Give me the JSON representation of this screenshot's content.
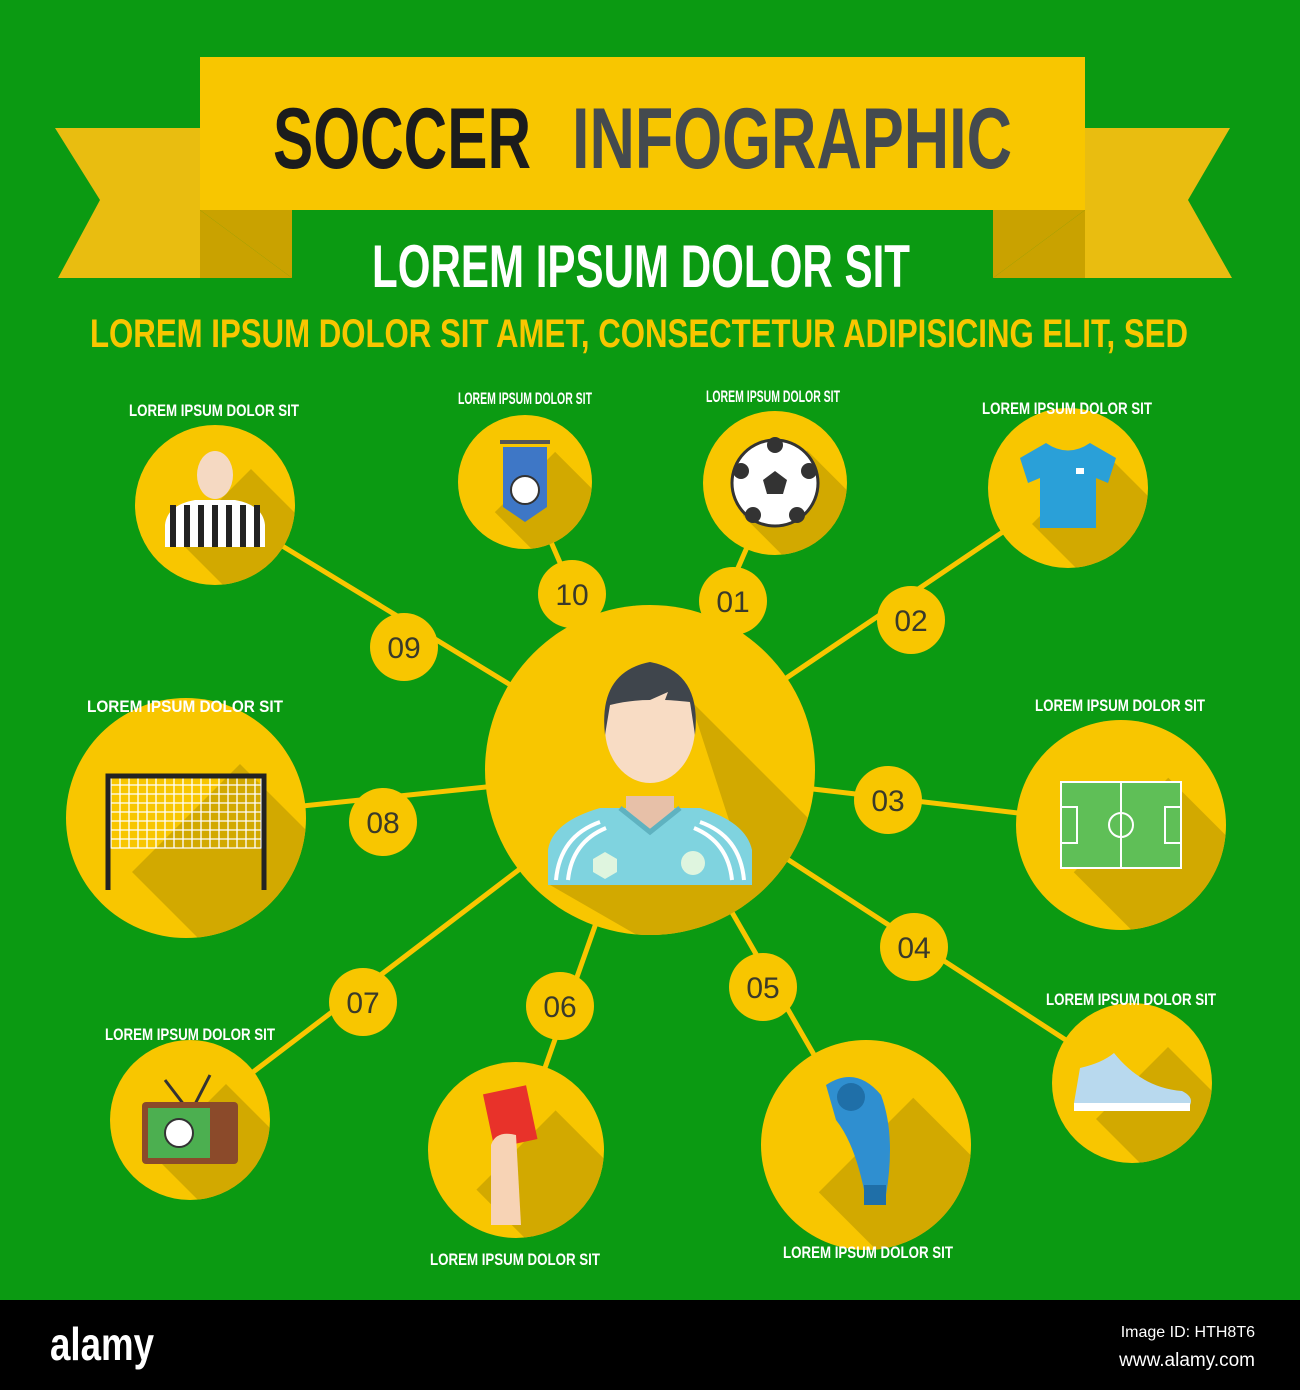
{
  "colors": {
    "background": "#0b9a12",
    "yellow": "#f8c600",
    "shadow": "#d2a900",
    "ribbon_tail": "#e9bd10",
    "ribbon_fold": "#c9a200",
    "title_dark": "#1c1c1c",
    "title_grey": "#444a4f",
    "footer": "#000000"
  },
  "header": {
    "title_word1": "SOCCER",
    "title_word2": "INFOGRAPHIC",
    "subtitle": "LOREM IPSUM DOLOR SIT",
    "tagline": "LOREM IPSUM DOLOR SIT AMET, CONSECTETUR  ADIPISICING ELIT, SED"
  },
  "center": {
    "icon": "soccer-player-icon"
  },
  "nodes": [
    {
      "number": "01",
      "label": "LOREM IPSUM DOLOR SIT",
      "icon": "soccer-ball-icon"
    },
    {
      "number": "02",
      "label": "LOREM IPSUM DOLOR SIT",
      "icon": "jersey-icon"
    },
    {
      "number": "03",
      "label": "LOREM IPSUM DOLOR SIT",
      "icon": "soccer-field-icon"
    },
    {
      "number": "04",
      "label": "LOREM IPSUM DOLOR SIT",
      "icon": "cleat-shoe-icon"
    },
    {
      "number": "05",
      "label": "LOREM IPSUM DOLOR SIT",
      "icon": "whistle-icon"
    },
    {
      "number": "06",
      "label": "LOREM IPSUM DOLOR SIT",
      "icon": "red-card-icon"
    },
    {
      "number": "07",
      "label": "LOREM IPSUM DOLOR SIT",
      "icon": "tv-icon"
    },
    {
      "number": "08",
      "label": "LOREM IPSUM DOLOR SIT",
      "icon": "goal-net-icon"
    },
    {
      "number": "09",
      "label": "LOREM IPSUM DOLOR SIT",
      "icon": "referee-icon"
    },
    {
      "number": "10",
      "label": "LOREM IPSUM DOLOR SIT",
      "icon": "pennant-icon"
    }
  ],
  "footer": {
    "logo": "alamy",
    "image_id": "Image ID: HTH8T6",
    "url": "www.alamy.com"
  }
}
